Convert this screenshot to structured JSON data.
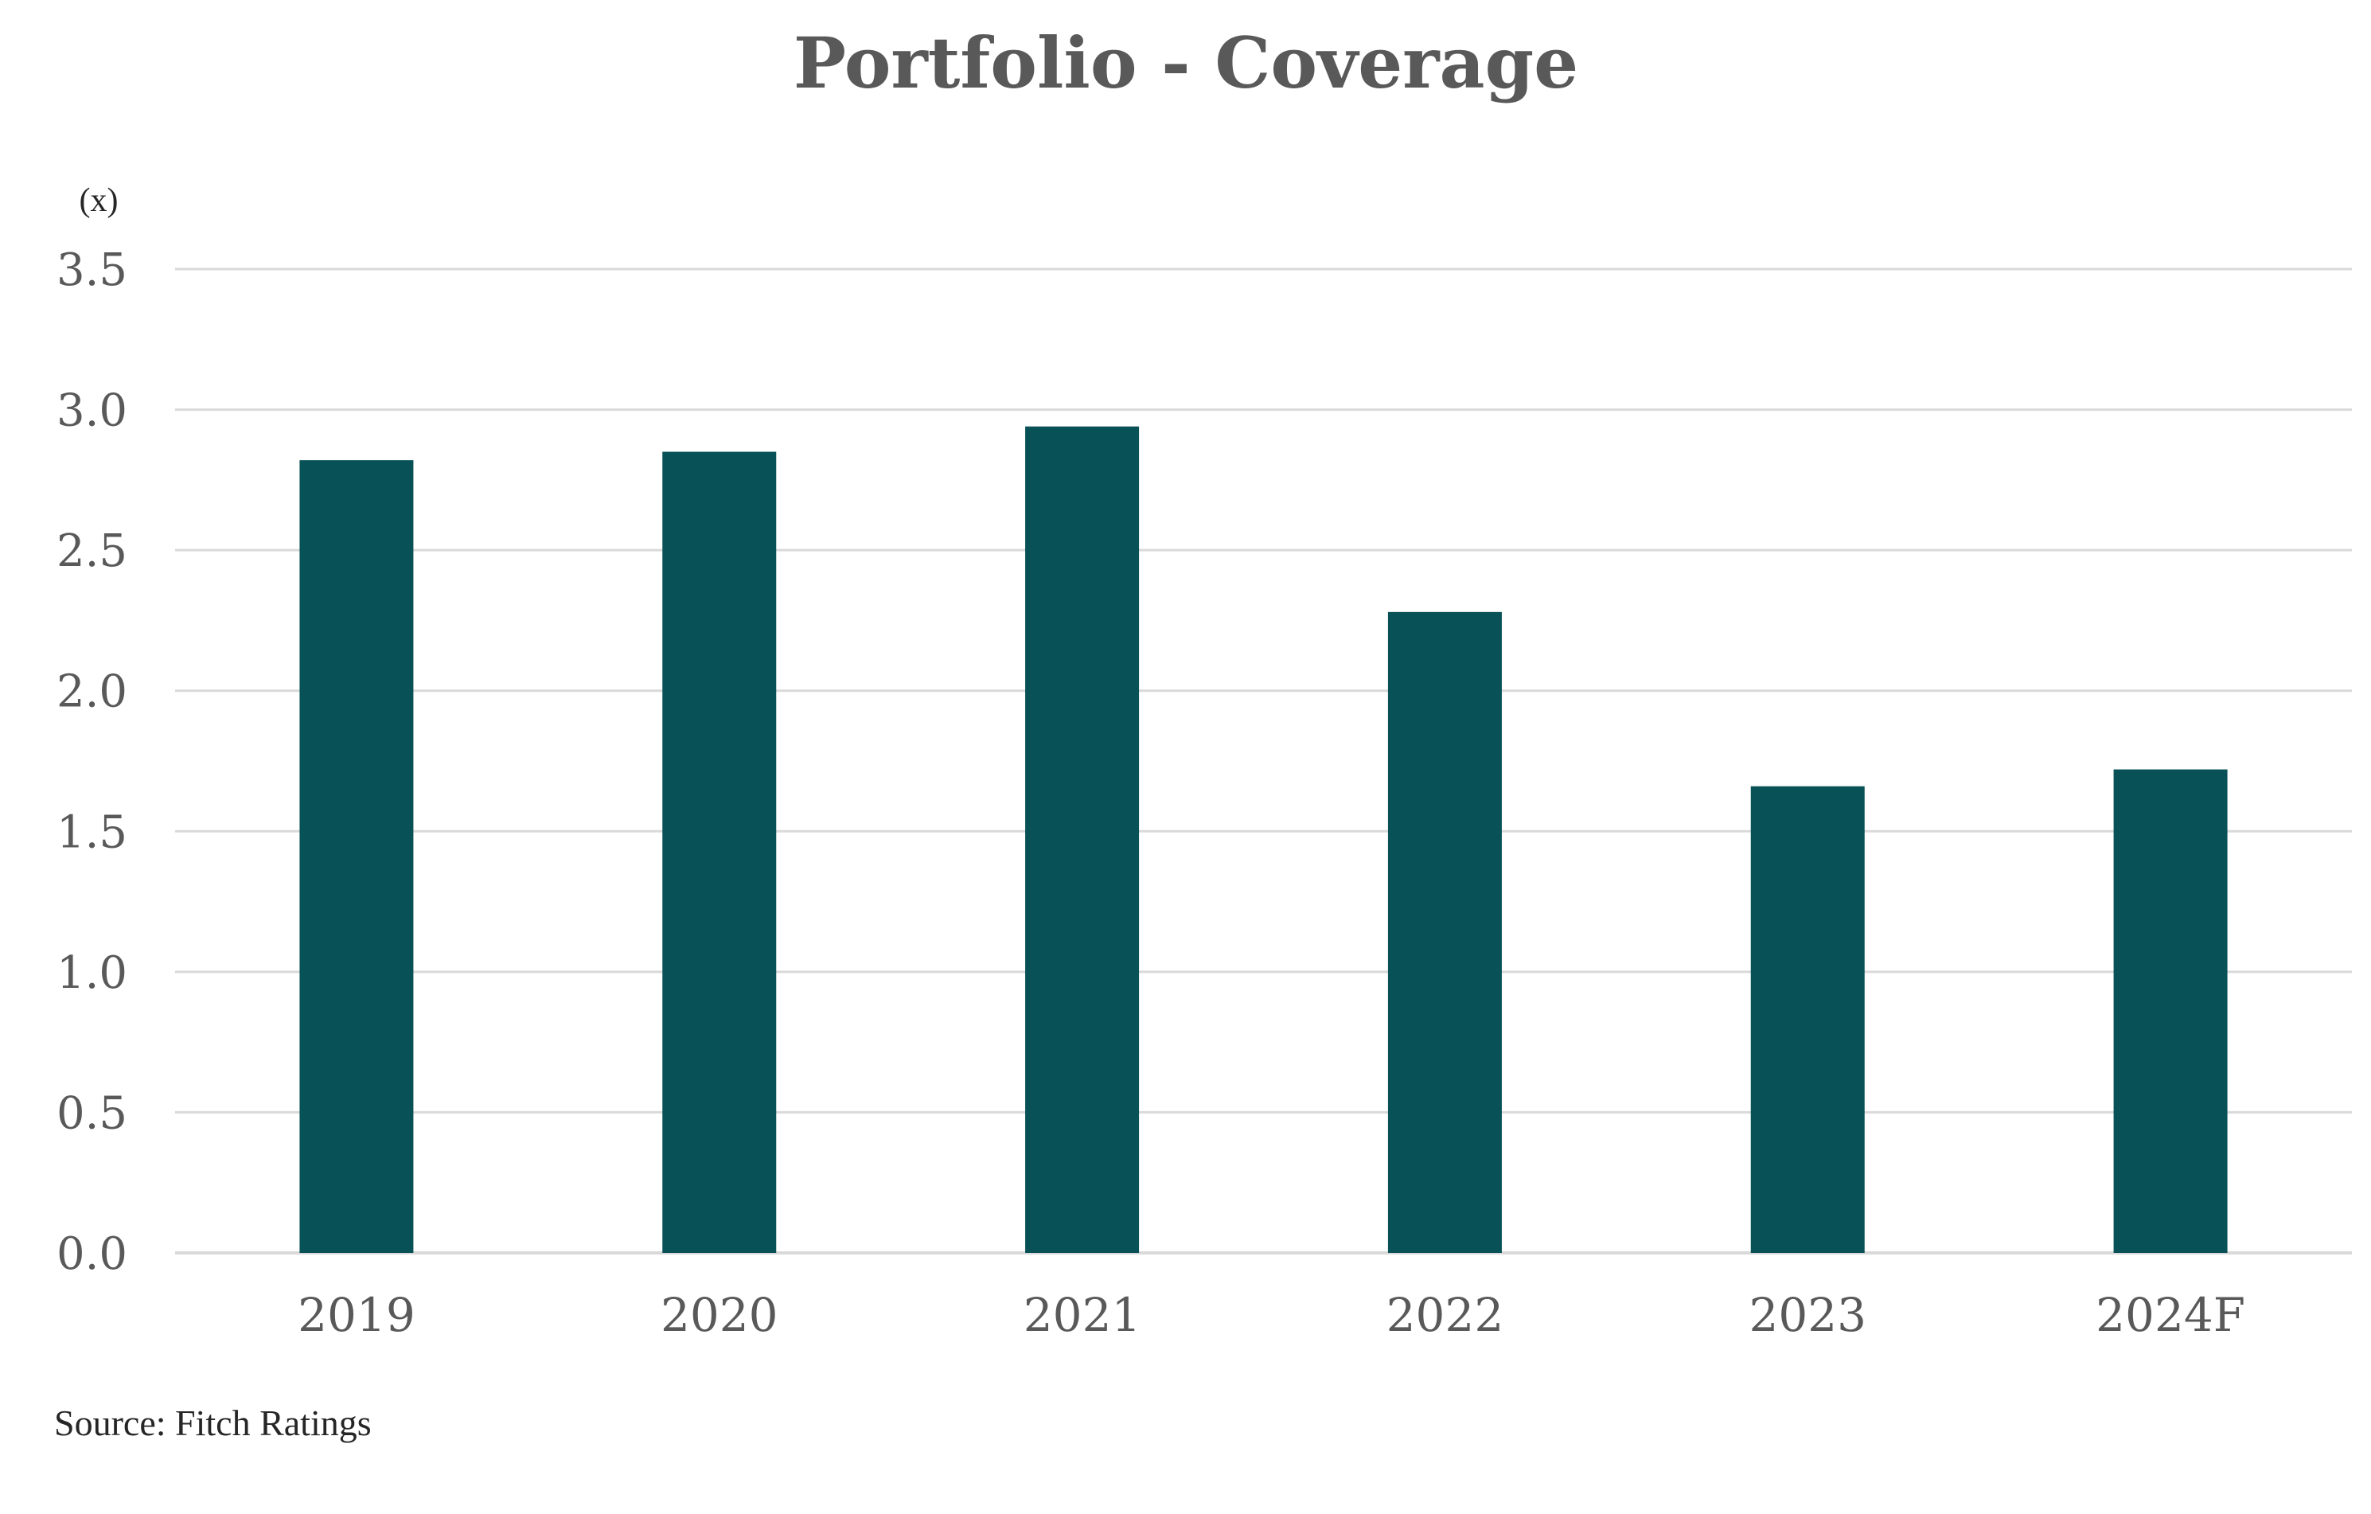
{
  "chart_data": {
    "type": "bar",
    "title": "Portfolio - Coverage",
    "unit_label": "(x)",
    "categories": [
      "2019",
      "2020",
      "2021",
      "2022",
      "2023",
      "2024F"
    ],
    "values": [
      2.82,
      2.85,
      2.94,
      2.28,
      1.66,
      1.72
    ],
    "ylim": [
      0,
      3.5
    ],
    "yticks": [
      0.0,
      0.5,
      1.0,
      1.5,
      2.0,
      2.5,
      3.0,
      3.5
    ],
    "ytick_labels": [
      "0.0",
      "0.5",
      "1.0",
      "1.5",
      "2.0",
      "2.5",
      "3.0",
      "3.5"
    ],
    "grid": true,
    "legend": "none",
    "source": "Source: Fitch Ratings"
  },
  "colors": {
    "bar": "#085157",
    "title": "#595959",
    "tick_text": "#595959",
    "body_text": "#262626",
    "gridline": "#d9d9d9",
    "baseline": "#d9d9d9"
  }
}
